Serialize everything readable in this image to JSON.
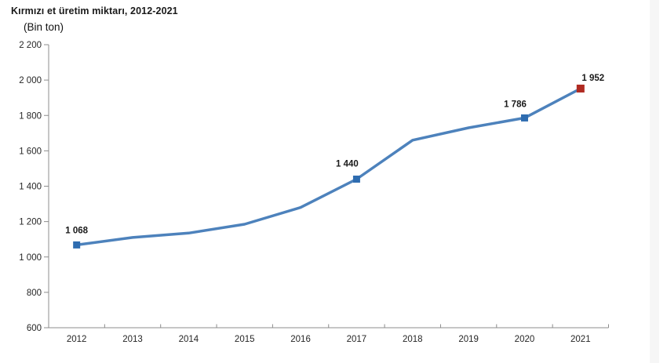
{
  "page": {
    "background": "#ffffff"
  },
  "header": {
    "title": "Kırmızı et üretim miktarı, 2012-2021",
    "unit_label": "(Bin ton)"
  },
  "chart_data": {
    "type": "line",
    "title": "Kırmızı et üretim miktarı, 2012-2021",
    "subtitle": "(Bin ton)",
    "xlabel": "",
    "ylabel": "Bin ton",
    "categories": [
      "2012",
      "2013",
      "2014",
      "2015",
      "2016",
      "2017",
      "2018",
      "2019",
      "2020",
      "2021"
    ],
    "series": [
      {
        "name": "Kırmızı et üretim miktarı",
        "values": [
          1068,
          1110,
          1135,
          1185,
          1280,
          1440,
          1660,
          1730,
          1786,
          1952
        ]
      }
    ],
    "labeled_points": [
      {
        "category": "2012",
        "index": 0,
        "value": 1068,
        "label": "1 068",
        "marker": "square",
        "marker_color": "#2e6cb0"
      },
      {
        "category": "2017",
        "index": 5,
        "value": 1440,
        "label": "1 440",
        "marker": "square",
        "marker_color": "#2e6cb0"
      },
      {
        "category": "2020",
        "index": 8,
        "value": 1786,
        "label": "1 786",
        "marker": "square",
        "marker_color": "#2e6cb0"
      },
      {
        "category": "2021",
        "index": 9,
        "value": 1952,
        "label": "1 952",
        "marker": "square",
        "marker_color": "#b02a21"
      }
    ],
    "ylim": [
      600,
      2200
    ],
    "ytick_step": 200,
    "ytick_labels": [
      "600",
      "800",
      "1 000",
      "1 200",
      "1 400",
      "1 600",
      "1 800",
      "2 000",
      "2 200"
    ],
    "grid": false,
    "legend_position": "none",
    "colors": {
      "line": "#4d82bc",
      "marker": "#2e6cb0",
      "last_marker": "#b02a21",
      "axis": "#8c8c8c",
      "tick_text": "#262626",
      "data_label_text": "#1a1a1a"
    }
  }
}
